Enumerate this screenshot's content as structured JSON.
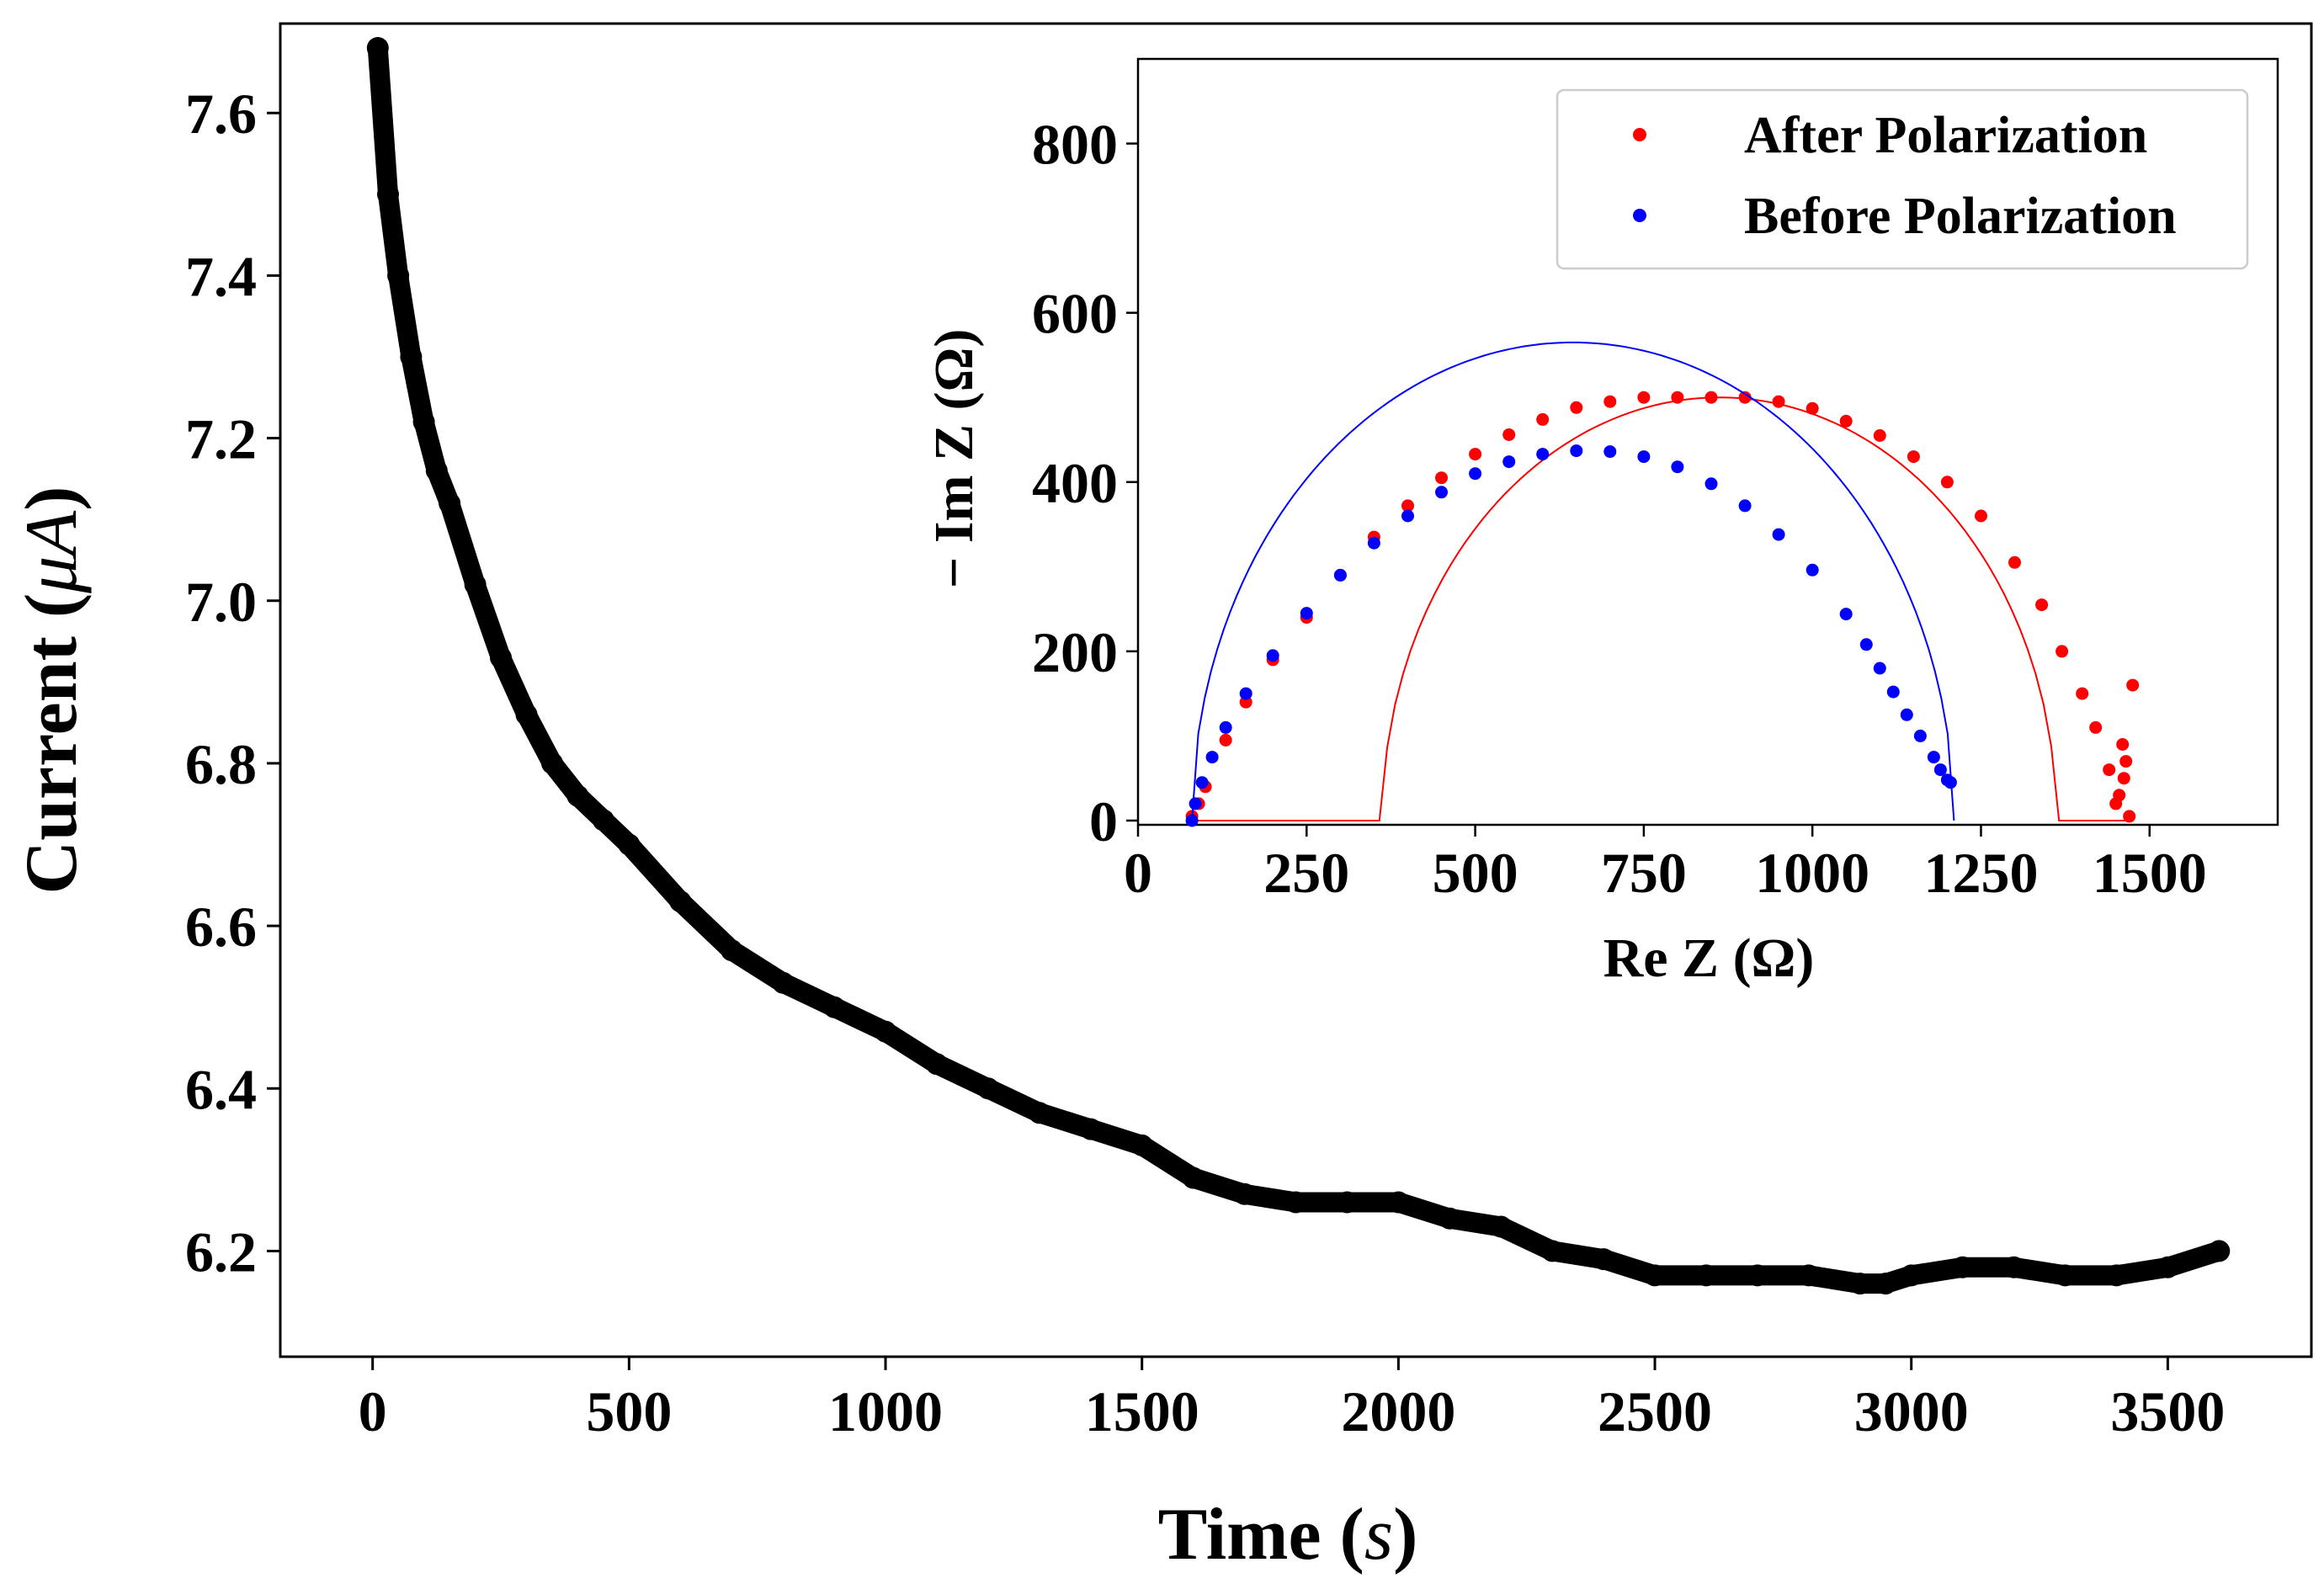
{
  "chart_data": [
    {
      "id": "main",
      "type": "scatter",
      "title": "",
      "xlabel": "Time (s)",
      "xlabel_text": "Time (",
      "xlabel_var": "s",
      "xlabel_close": ")",
      "ylabel": "Current (μA)",
      "ylabel_text": "Current (",
      "ylabel_var": "μA",
      "ylabel_close": ")",
      "xlim": [
        -180,
        3780
      ],
      "ylim": [
        6.07,
        7.71
      ],
      "xticks": [
        0,
        500,
        1000,
        1500,
        2000,
        2500,
        3000,
        3500
      ],
      "xtick_labels": [
        "0",
        "500",
        "1000",
        "1500",
        "2000",
        "2500",
        "3000",
        "3500"
      ],
      "yticks": [
        6.2,
        6.4,
        6.6,
        6.8,
        7.0,
        7.2,
        7.4,
        7.6
      ],
      "ytick_labels": [
        "6.2",
        "6.4",
        "6.6",
        "6.8",
        "7.0",
        "7.2",
        "7.4",
        "7.6"
      ],
      "grid": false,
      "series": [
        {
          "name": "Current",
          "color": "#000000",
          "x": [
            10,
            30,
            50,
            75,
            100,
            125,
            150,
            200,
            250,
            300,
            350,
            400,
            450,
            500,
            600,
            700,
            800,
            900,
            1000,
            1100,
            1200,
            1300,
            1400,
            1500,
            1600,
            1700,
            1800,
            1900,
            2000,
            2100,
            2200,
            2300,
            2400,
            2500,
            2600,
            2700,
            2800,
            2900,
            2950,
            3000,
            3100,
            3200,
            3300,
            3400,
            3500,
            3600
          ],
          "y": [
            7.68,
            7.5,
            7.4,
            7.3,
            7.22,
            7.16,
            7.12,
            7.02,
            6.93,
            6.86,
            6.8,
            6.76,
            6.73,
            6.7,
            6.63,
            6.57,
            6.53,
            6.5,
            6.47,
            6.43,
            6.4,
            6.37,
            6.35,
            6.33,
            6.29,
            6.27,
            6.26,
            6.26,
            6.26,
            6.24,
            6.23,
            6.2,
            6.19,
            6.17,
            6.17,
            6.17,
            6.17,
            6.16,
            6.16,
            6.17,
            6.18,
            6.18,
            6.17,
            6.17,
            6.18,
            6.2
          ]
        }
      ]
    },
    {
      "id": "inset",
      "type": "scatter",
      "title": "",
      "xlabel": "Re Z (Ω)",
      "ylabel": "− Im Z (Ω)",
      "xlim": [
        0,
        1690
      ],
      "ylim": [
        -5,
        900
      ],
      "xticks": [
        0,
        250,
        500,
        750,
        1000,
        1250,
        1500
      ],
      "xtick_labels": [
        "0",
        "250",
        "500",
        "750",
        "1000",
        "1250",
        "1500"
      ],
      "yticks": [
        0,
        200,
        400,
        600,
        800
      ],
      "ytick_labels": [
        "0",
        "200",
        "400",
        "600",
        "800"
      ],
      "grid": false,
      "legend_position": "top-right",
      "series": [
        {
          "name": "After Polarization",
          "color": "#ff0000",
          "fit_center": 862,
          "fit_radius": 500,
          "fit_x_start": 80,
          "fit_x_end": 1470,
          "x": [
            80,
            90,
            100,
            130,
            160,
            200,
            250,
            300,
            350,
            400,
            450,
            500,
            550,
            600,
            650,
            700,
            750,
            800,
            850,
            900,
            950,
            1000,
            1050,
            1100,
            1150,
            1200,
            1250,
            1300,
            1340,
            1370,
            1400,
            1420,
            1440,
            1450,
            1460,
            1470,
            1462,
            1475,
            1455,
            1465
          ],
          "y": [
            5,
            20,
            40,
            95,
            140,
            190,
            240,
            290,
            335,
            372,
            405,
            433,
            456,
            474,
            488,
            495,
            500,
            500,
            500,
            500,
            495,
            487,
            472,
            455,
            430,
            400,
            360,
            305,
            255,
            200,
            150,
            110,
            60,
            20,
            90,
            5,
            50,
            160,
            30,
            70
          ]
        },
        {
          "name": "Before Polarization",
          "color": "#0000ff",
          "fit_center": 645,
          "fit_radius": 565,
          "fit_x_start": 80,
          "fit_x_end": 1210,
          "x": [
            80,
            85,
            95,
            110,
            130,
            160,
            200,
            250,
            300,
            350,
            400,
            450,
            500,
            550,
            600,
            650,
            700,
            750,
            800,
            850,
            900,
            950,
            1000,
            1050,
            1080,
            1100,
            1120,
            1140,
            1160,
            1180,
            1190,
            1200,
            1205
          ],
          "y": [
            0,
            20,
            45,
            75,
            110,
            150,
            195,
            245,
            290,
            328,
            360,
            388,
            410,
            424,
            433,
            437,
            436,
            430,
            418,
            398,
            372,
            338,
            296,
            244,
            208,
            180,
            152,
            125,
            100,
            75,
            60,
            48,
            45
          ]
        }
      ]
    }
  ]
}
